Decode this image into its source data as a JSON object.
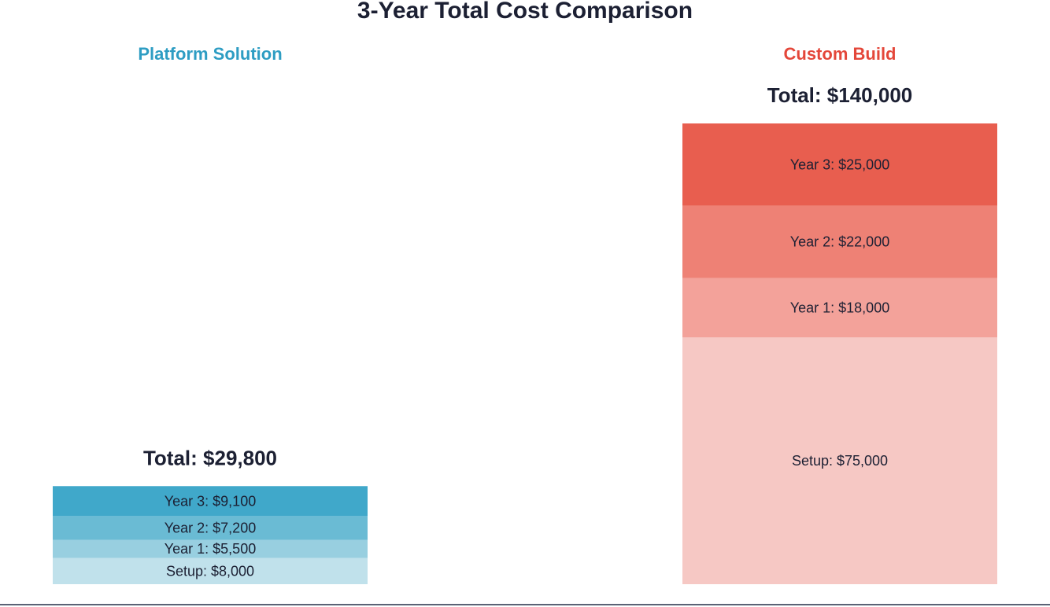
{
  "chart_data": {
    "type": "bar",
    "stacked": true,
    "title": "3-Year Total Cost Comparison",
    "xlabel": "",
    "ylabel": "",
    "grid": false,
    "legend": "none",
    "categories": [
      "Platform Solution",
      "Custom Build"
    ],
    "series": [
      {
        "name": "Setup",
        "values": [
          8000,
          75000
        ]
      },
      {
        "name": "Year 1",
        "values": [
          5500,
          18000
        ]
      },
      {
        "name": "Year 2",
        "values": [
          7200,
          22000
        ]
      },
      {
        "name": "Year 3",
        "values": [
          9100,
          25000
        ]
      }
    ],
    "column_headers": [
      "Platform Solution",
      "Custom Build"
    ],
    "segment_labels": [
      [
        "Setup: $8,000",
        "Year 1: $5,500",
        "Year 2: $7,200",
        "Year 3: $9,100"
      ],
      [
        "Setup: $75,000",
        "Year 1: $18,000",
        "Year 2: $22,000",
        "Year 3: $25,000"
      ]
    ],
    "totals": [
      29800,
      140000
    ],
    "total_labels": [
      "Total: $29,800",
      "Total: $140,000"
    ],
    "colors": {
      "title": "#1c2033",
      "total_text": "#1c2033",
      "segment_text": "#1c2033",
      "baseline": "#5a6275",
      "header": [
        "#2e9dc3",
        "#e4473a"
      ],
      "segments": [
        [
          "#c0e1eb",
          "#98cfe0",
          "#6abbd4",
          "#40a8ca"
        ],
        [
          "#f6c8c4",
          "#f3a29a",
          "#ee8175",
          "#e85e4f"
        ]
      ]
    }
  }
}
